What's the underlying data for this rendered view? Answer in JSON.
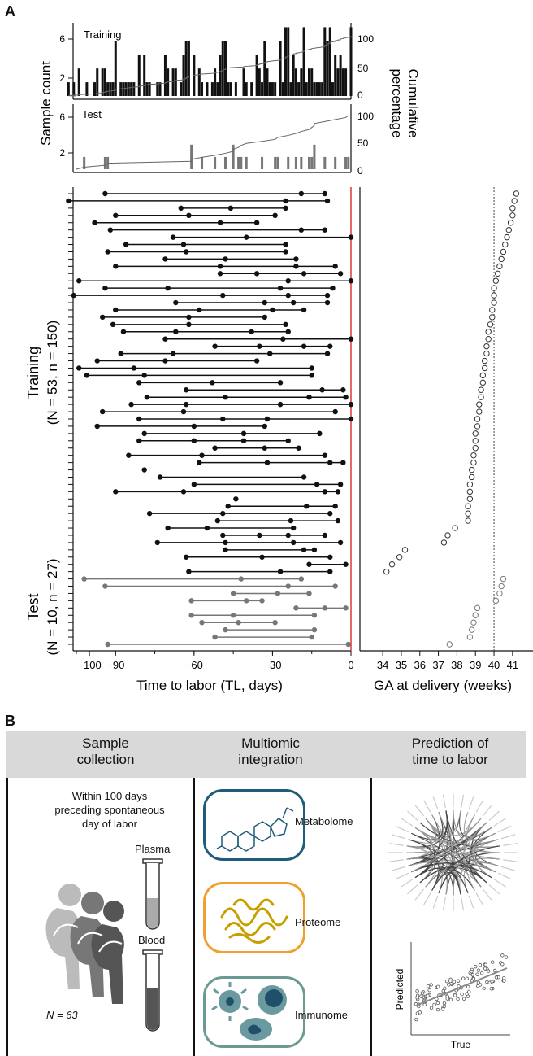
{
  "panel_a": {
    "letter": "A",
    "hist_training_label": "Training",
    "hist_test_label": "Test",
    "sample_count_label": "Sample count",
    "cumulative_label_1": "Cumulative",
    "cumulative_label_2": "percentage",
    "training_group_label_1": "Training",
    "training_group_label_2": "(N = 53, n = 150)",
    "test_group_label_1": "Test",
    "test_group_label_2": "(N = 10, n = 27)",
    "x_label": "Time to labor (TL, days)",
    "x_ticks": [
      "−100",
      "−90",
      "−60",
      "−30",
      "0"
    ],
    "ga_x_label": "GA at delivery (weeks)",
    "ga_ticks": [
      "34",
      "35",
      "36",
      "37",
      "38",
      "39",
      "40",
      "41"
    ],
    "hist_y_ticks": [
      "6",
      "2"
    ],
    "cum_ticks": [
      "100",
      "50",
      "0"
    ],
    "colors": {
      "training": "#111111",
      "test": "#777777",
      "zero_line": "#d62a2a"
    }
  },
  "panel_b": {
    "letter": "B",
    "col1_title": [
      "Sample",
      "collection"
    ],
    "col2_title": [
      "Multiomic",
      "integration"
    ],
    "col3_title": [
      "Prediction of",
      "time to labor"
    ],
    "within_text": [
      "Within 100 days",
      "preceding spontaneous",
      "day of labor"
    ],
    "plasma_label": "Plasma",
    "blood_label": "Blood",
    "n_label": "N = 63",
    "metabolome_label": "Metabolome",
    "proteome_label": "Proteome",
    "immunome_label": "Immunome",
    "predicted_label": "Predicted",
    "true_label": "True",
    "colors": {
      "metabolome": "#1f5c78",
      "proteome": "#f0a030",
      "immunome": "#6a9a92"
    }
  },
  "chart_data": {
    "type": "scatter",
    "xlabel": "Time to labor (TL, days)",
    "xlim": [
      -105,
      0
    ],
    "training_subjects": [
      [
        -94,
        -19,
        -10
      ],
      [
        -108,
        -25,
        -9
      ],
      [
        -65,
        -46,
        -25
      ],
      [
        -90,
        -62,
        -29
      ],
      [
        -98,
        -50,
        -36
      ],
      [
        -92,
        -19,
        -10
      ],
      [
        -68,
        -40,
        0
      ],
      [
        -86,
        -64,
        -25
      ],
      [
        -93,
        -63,
        -25
      ],
      [
        -71,
        -48,
        -21
      ],
      [
        -90,
        -50,
        -21,
        -6
      ],
      [
        -50,
        -36,
        -18,
        -4
      ],
      [
        -104,
        -24,
        0
      ],
      [
        -94,
        -70,
        -27,
        -7
      ],
      [
        -106,
        -49,
        -24,
        -9
      ],
      [
        -67,
        -33,
        -22,
        -9
      ],
      [
        -90,
        -58,
        -30,
        -18
      ],
      [
        -95,
        -62,
        -33
      ],
      [
        -91,
        -62,
        -25
      ],
      [
        -87,
        -67,
        -38,
        -24
      ],
      [
        -71,
        -26,
        0
      ],
      [
        -52,
        -35,
        -18,
        -8
      ],
      [
        -88,
        -68,
        -31,
        -9
      ],
      [
        -97,
        -71,
        -36
      ],
      [
        -104,
        -83,
        -15
      ],
      [
        -101,
        -79,
        -15
      ],
      [
        -81,
        -53,
        -27
      ],
      [
        -63,
        -11,
        -3
      ],
      [
        -78,
        -48,
        -16,
        -2
      ],
      [
        -84,
        -63,
        -27,
        0
      ],
      [
        -95,
        -64,
        -6
      ],
      [
        -81,
        -49,
        -32,
        0
      ],
      [
        -97,
        -60,
        -33
      ],
      [
        -79,
        -41,
        -12
      ],
      [
        -81,
        -60,
        -41,
        -24
      ],
      [
        -52,
        -33,
        -20
      ],
      [
        -85,
        -57,
        -10
      ],
      [
        -58,
        -32,
        -8,
        -3
      ],
      [
        -79
      ],
      [
        -73,
        -18
      ],
      [
        -60,
        -13,
        -4
      ],
      [
        -90,
        -64,
        -10,
        -5
      ],
      [
        -44
      ],
      [
        -47,
        -17,
        -6
      ],
      [
        -77,
        -49,
        -8
      ],
      [
        -51,
        -23,
        -5
      ],
      [
        -70,
        -55,
        -22
      ],
      [
        -49,
        -35,
        -24,
        -10
      ],
      [
        -74,
        -48,
        -22,
        -4
      ],
      [
        -48,
        -18,
        -14
      ],
      [
        -63,
        -34,
        -8
      ],
      [
        -16,
        -2
      ],
      [
        -62,
        -27,
        -8
      ]
    ],
    "test_subjects": [
      [
        -102,
        -42,
        -19
      ],
      [
        -94,
        -24,
        -6
      ],
      [
        -45,
        -28,
        -16
      ],
      [
        -61,
        -40,
        -34
      ],
      [
        -21,
        -10,
        -2
      ],
      [
        -61,
        -45,
        -14
      ],
      [
        -57,
        -43,
        -29
      ],
      [
        -48,
        -14
      ],
      [
        -52,
        -15
      ],
      [
        -93,
        -1
      ]
    ],
    "ga_xlabel": "GA at delivery (weeks)",
    "ga_xlim": [
      33.5,
      41.5
    ],
    "ga_reference_week": 40,
    "ga_training": [
      41.2,
      41.1,
      41.0,
      41.0,
      40.9,
      40.8,
      40.7,
      40.6,
      40.5,
      40.4,
      40.3,
      40.2,
      40.1,
      40.0,
      40.0,
      40.0,
      39.9,
      39.9,
      39.8,
      39.7,
      39.7,
      39.6,
      39.6,
      39.5,
      39.5,
      39.4,
      39.4,
      39.3,
      39.3,
      39.2,
      39.2,
      39.1,
      39.1,
      39.0,
      39.0,
      39.0,
      38.9,
      38.9,
      38.8,
      38.8,
      38.7,
      38.7,
      38.7,
      38.6,
      38.6,
      38.6,
      37.9,
      37.5,
      37.3,
      35.2,
      34.9,
      34.5,
      34.2
    ],
    "ga_test": [
      40.5,
      40.4,
      40.3,
      40.1,
      39.1,
      39.0,
      38.9,
      38.8,
      38.7,
      37.6
    ]
  }
}
